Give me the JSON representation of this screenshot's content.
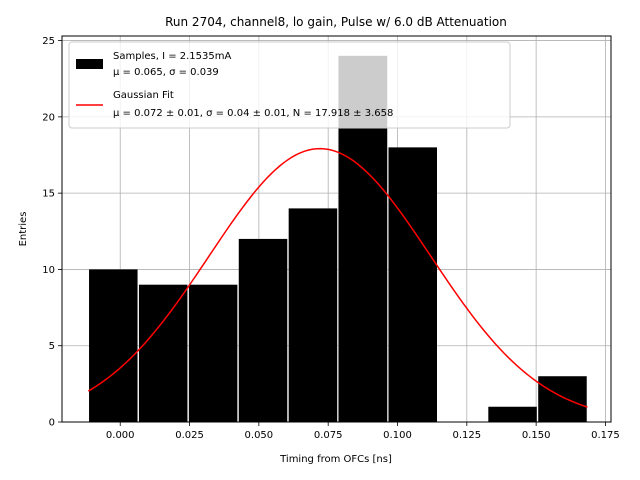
{
  "chart_data": {
    "type": "bar",
    "title": "Run 2704, channel8, lo gain, Pulse w/ 6.0 dB Attenuation",
    "xlabel": "Timing from OFCs [ns]",
    "ylabel": "Entries",
    "xlim": [
      -0.021,
      0.177
    ],
    "ylim": [
      0,
      25.3
    ],
    "xticks": [
      0.0,
      0.025,
      0.05,
      0.075,
      0.1,
      0.125,
      0.15,
      0.175
    ],
    "xtick_labels": [
      "0.000",
      "0.025",
      "0.050",
      "0.075",
      "0.100",
      "0.125",
      "0.150",
      "0.175"
    ],
    "yticks": [
      0,
      5,
      10,
      15,
      20,
      25
    ],
    "ytick_labels": [
      "0",
      "5",
      "10",
      "15",
      "20",
      "25"
    ],
    "grid": true,
    "legend_position": "upper-left",
    "bin_edges": [
      -0.0115,
      0.0065,
      0.0245,
      0.0425,
      0.0605,
      0.0785,
      0.0965,
      0.1145,
      0.1325,
      0.1505,
      0.1685
    ],
    "counts": [
      10,
      9,
      9,
      12,
      14,
      24,
      18,
      0,
      1,
      3
    ],
    "series": [
      {
        "name": "Samples, I = 2.1535mA",
        "detail": "μ = 0.065, σ = 0.039",
        "kind": "histogram",
        "color": "#000000"
      },
      {
        "name": "Gaussian Fit",
        "detail": "μ = 0.072 ± 0.01, σ = 0.04 ± 0.01, N = 17.918 ± 3.658",
        "kind": "line",
        "color": "#ff0000",
        "fit": {
          "mu": 0.072,
          "sigma": 0.04,
          "N": 17.918,
          "x_range": [
            -0.0115,
            0.1685
          ]
        }
      }
    ],
    "overlay_bar": {
      "x_range": [
        0.0785,
        0.0965
      ],
      "value": 24,
      "color": "#cccccc"
    }
  }
}
